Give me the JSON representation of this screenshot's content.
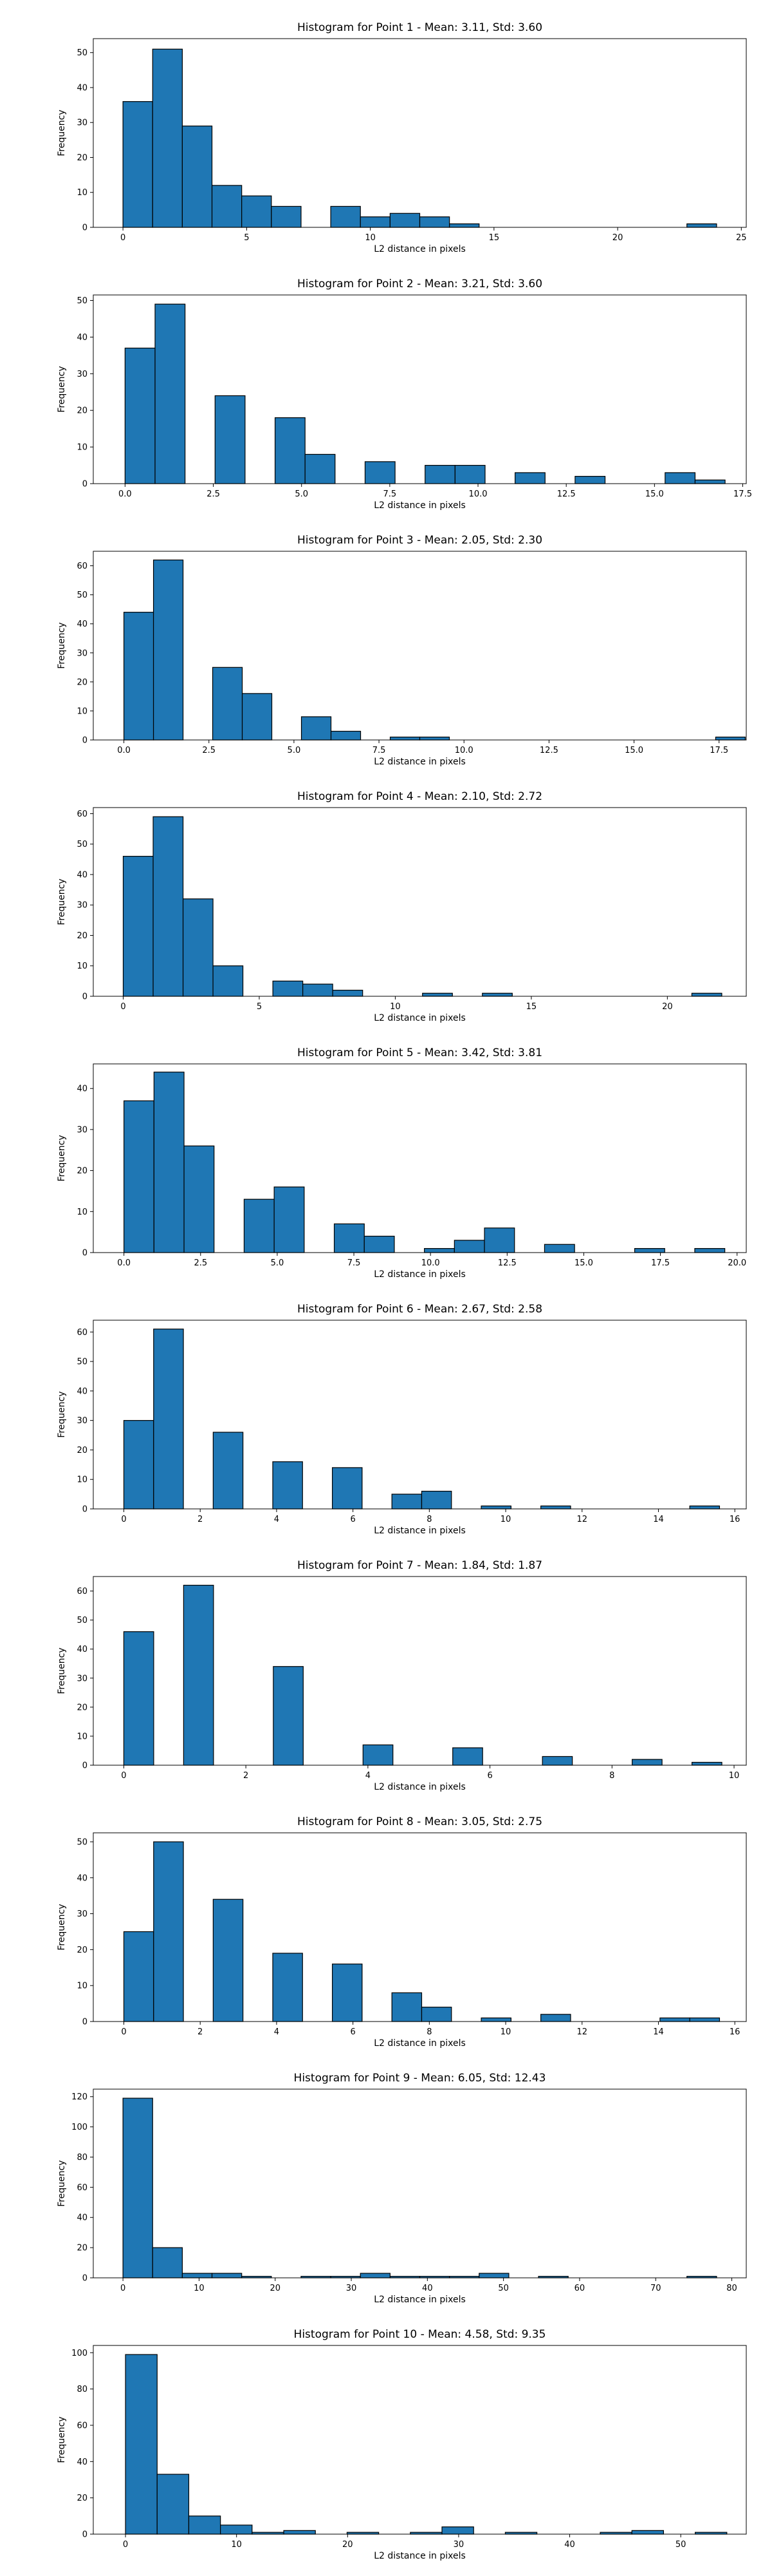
{
  "chart_data": [
    {
      "type": "bar",
      "title": "Histogram for Point 1 - Mean: 3.11, Std: 3.60",
      "xlabel": "L2 distance in pixels",
      "ylabel": "Frequency",
      "xlim": [
        -1.2,
        25.2
      ],
      "ylim": [
        0,
        54
      ],
      "xticks": [
        0,
        5,
        10,
        15,
        20,
        25
      ],
      "yticks": [
        0,
        10,
        20,
        30,
        40,
        50
      ],
      "bin_width": 1.2,
      "bins": [
        {
          "x": 0,
          "v": 36
        },
        {
          "x": 1.2,
          "v": 51
        },
        {
          "x": 2.4,
          "v": 29
        },
        {
          "x": 3.6,
          "v": 12
        },
        {
          "x": 4.8,
          "v": 9
        },
        {
          "x": 6.0,
          "v": 6
        },
        {
          "x": 8.4,
          "v": 6
        },
        {
          "x": 9.6,
          "v": 3
        },
        {
          "x": 10.8,
          "v": 4
        },
        {
          "x": 12.0,
          "v": 3
        },
        {
          "x": 13.2,
          "v": 1
        },
        {
          "x": 22.8,
          "v": 1
        }
      ]
    },
    {
      "type": "bar",
      "title": "Histogram for Point 2 - Mean: 3.21, Std: 3.60",
      "xlabel": "L2 distance in pixels",
      "ylabel": "Frequency",
      "xlim": [
        -0.9,
        17.6
      ],
      "ylim": [
        0,
        51.5
      ],
      "xticks": [
        0.0,
        2.5,
        5.0,
        7.5,
        10.0,
        12.5,
        15.0,
        17.5
      ],
      "ytickss": [],
      "yticks": [
        0,
        10,
        20,
        30,
        40,
        50
      ],
      "bin_width": 0.85,
      "bins": [
        {
          "x": 0,
          "v": 37
        },
        {
          "x": 0.85,
          "v": 49
        },
        {
          "x": 2.55,
          "v": 24
        },
        {
          "x": 4.25,
          "v": 18
        },
        {
          "x": 5.1,
          "v": 8
        },
        {
          "x": 6.8,
          "v": 6
        },
        {
          "x": 8.5,
          "v": 5
        },
        {
          "x": 9.35,
          "v": 5
        },
        {
          "x": 11.05,
          "v": 3
        },
        {
          "x": 12.75,
          "v": 2
        },
        {
          "x": 15.3,
          "v": 3
        },
        {
          "x": 16.15,
          "v": 1
        }
      ]
    },
    {
      "type": "bar",
      "title": "Histogram for Point 3 - Mean: 2.05, Std: 2.30",
      "xlabel": "L2 distance in pixels",
      "ylabel": "Frequency",
      "xlim": [
        -0.9,
        18.3
      ],
      "ylim": [
        0,
        65
      ],
      "xticks": [
        0.0,
        2.5,
        5.0,
        7.5,
        10.0,
        12.5,
        15.0,
        17.5
      ],
      "yticks": [
        0,
        10,
        20,
        30,
        40,
        50,
        60
      ],
      "bin_width": 0.87,
      "bins": [
        {
          "x": 0,
          "v": 44
        },
        {
          "x": 0.87,
          "v": 62
        },
        {
          "x": 2.61,
          "v": 25
        },
        {
          "x": 3.48,
          "v": 16
        },
        {
          "x": 5.22,
          "v": 8
        },
        {
          "x": 6.09,
          "v": 3
        },
        {
          "x": 7.83,
          "v": 1
        },
        {
          "x": 8.7,
          "v": 1
        },
        {
          "x": 17.4,
          "v": 1
        }
      ]
    },
    {
      "type": "bar",
      "title": "Histogram for Point 4 - Mean: 2.10, Std: 2.72",
      "xlabel": "L2 distance in pixels",
      "ylabel": "Frequency",
      "xlim": [
        -1.1,
        22.9
      ],
      "ylim": [
        0,
        62
      ],
      "xticks": [
        0,
        5,
        10,
        15,
        20
      ],
      "yticks": [
        0,
        10,
        20,
        30,
        40,
        50,
        60
      ],
      "bin_width": 1.1,
      "bins": [
        {
          "x": 0,
          "v": 46
        },
        {
          "x": 1.1,
          "v": 59
        },
        {
          "x": 2.2,
          "v": 32
        },
        {
          "x": 3.3,
          "v": 10
        },
        {
          "x": 5.5,
          "v": 5
        },
        {
          "x": 6.6,
          "v": 4
        },
        {
          "x": 7.7,
          "v": 2
        },
        {
          "x": 11.0,
          "v": 1
        },
        {
          "x": 13.2,
          "v": 1
        },
        {
          "x": 20.9,
          "v": 1
        }
      ]
    },
    {
      "type": "bar",
      "title": "Histogram for Point 5 - Mean: 3.42, Std: 3.81",
      "xlabel": "L2 distance in pixels",
      "ylabel": "Frequency",
      "xlim": [
        -1.0,
        20.3
      ],
      "ylim": [
        0,
        46
      ],
      "xticks": [
        0.0,
        2.5,
        5.0,
        7.5,
        10.0,
        12.5,
        15.0,
        17.5,
        20.0
      ],
      "yticks": [
        0,
        10,
        20,
        30,
        40
      ],
      "bin_width": 0.98,
      "bins": [
        {
          "x": 0,
          "v": 37
        },
        {
          "x": 0.98,
          "v": 44
        },
        {
          "x": 1.96,
          "v": 26
        },
        {
          "x": 3.92,
          "v": 13
        },
        {
          "x": 4.9,
          "v": 16
        },
        {
          "x": 6.86,
          "v": 7
        },
        {
          "x": 7.84,
          "v": 4
        },
        {
          "x": 9.8,
          "v": 1
        },
        {
          "x": 10.78,
          "v": 3
        },
        {
          "x": 11.76,
          "v": 6
        },
        {
          "x": 13.72,
          "v": 2
        },
        {
          "x": 16.66,
          "v": 1
        },
        {
          "x": 18.62,
          "v": 1
        }
      ]
    },
    {
      "type": "bar",
      "title": "Histogram for Point 6 - Mean: 2.67, Std: 2.58",
      "xlabel": "L2 distance in pixels",
      "ylabel": "Frequency",
      "xlim": [
        -0.8,
        16.3
      ],
      "ylim": [
        0,
        64
      ],
      "xticks": [
        0,
        2,
        4,
        6,
        8,
        10,
        12,
        14,
        16
      ],
      "yticks": [
        0,
        10,
        20,
        30,
        40,
        50,
        60
      ],
      "bin_width": 0.78,
      "bins": [
        {
          "x": 0,
          "v": 30
        },
        {
          "x": 0.78,
          "v": 61
        },
        {
          "x": 2.34,
          "v": 26
        },
        {
          "x": 3.9,
          "v": 16
        },
        {
          "x": 5.46,
          "v": 14
        },
        {
          "x": 7.02,
          "v": 5
        },
        {
          "x": 7.8,
          "v": 6
        },
        {
          "x": 9.36,
          "v": 1
        },
        {
          "x": 10.92,
          "v": 1
        },
        {
          "x": 14.82,
          "v": 1
        }
      ]
    },
    {
      "type": "bar",
      "title": "Histogram for Point 7 - Mean: 1.84, Std: 1.87",
      "xlabel": "L2 distance in pixels",
      "ylabel": "Frequency",
      "xlim": [
        -0.5,
        10.2
      ],
      "ylim": [
        0,
        65
      ],
      "xticks": [
        0,
        2,
        4,
        6,
        8,
        10
      ],
      "yticks": [
        0,
        10,
        20,
        30,
        40,
        50,
        60
      ],
      "bin_width": 0.49,
      "bins": [
        {
          "x": 0,
          "v": 46
        },
        {
          "x": 0.98,
          "v": 62
        },
        {
          "x": 2.45,
          "v": 34
        },
        {
          "x": 3.92,
          "v": 7
        },
        {
          "x": 5.39,
          "v": 6
        },
        {
          "x": 6.86,
          "v": 3
        },
        {
          "x": 8.33,
          "v": 2
        },
        {
          "x": 9.31,
          "v": 1
        }
      ]
    },
    {
      "type": "bar",
      "title": "Histogram for Point 8 - Mean: 3.05, Std: 2.75",
      "xlabel": "L2 distance in pixels",
      "ylabel": "Frequency",
      "xlim": [
        -0.8,
        16.3
      ],
      "ylim": [
        0,
        52.5
      ],
      "xticks": [
        0,
        2,
        4,
        6,
        8,
        10,
        12,
        14,
        16
      ],
      "yticks": [
        0,
        10,
        20,
        30,
        40,
        50
      ],
      "bin_width": 0.78,
      "bins": [
        {
          "x": 0,
          "v": 25
        },
        {
          "x": 0.78,
          "v": 50
        },
        {
          "x": 2.34,
          "v": 34
        },
        {
          "x": 3.9,
          "v": 19
        },
        {
          "x": 5.46,
          "v": 16
        },
        {
          "x": 7.02,
          "v": 8
        },
        {
          "x": 7.8,
          "v": 4
        },
        {
          "x": 9.36,
          "v": 1
        },
        {
          "x": 10.92,
          "v": 2
        },
        {
          "x": 14.04,
          "v": 1
        },
        {
          "x": 14.82,
          "v": 1
        }
      ]
    },
    {
      "type": "bar",
      "title": "Histogram for Point 9 - Mean: 6.05, Std: 12.43",
      "xlabel": "L2 distance in pixels",
      "ylabel": "Frequency",
      "xlim": [
        -3.9,
        81.9
      ],
      "ylim": [
        0,
        125
      ],
      "xticks": [
        0,
        10,
        20,
        30,
        40,
        50,
        60,
        70,
        80
      ],
      "yticks": [
        0,
        20,
        40,
        60,
        80,
        100,
        120
      ],
      "bin_width": 3.9,
      "bins": [
        {
          "x": 0,
          "v": 119
        },
        {
          "x": 3.9,
          "v": 20
        },
        {
          "x": 7.8,
          "v": 3
        },
        {
          "x": 11.7,
          "v": 3
        },
        {
          "x": 15.6,
          "v": 1
        },
        {
          "x": 23.4,
          "v": 1
        },
        {
          "x": 27.3,
          "v": 1
        },
        {
          "x": 31.2,
          "v": 3
        },
        {
          "x": 35.1,
          "v": 1
        },
        {
          "x": 39.0,
          "v": 1
        },
        {
          "x": 42.9,
          "v": 1
        },
        {
          "x": 46.8,
          "v": 3
        },
        {
          "x": 54.6,
          "v": 1
        },
        {
          "x": 74.1,
          "v": 1
        }
      ]
    },
    {
      "type": "bar",
      "title": "Histogram for Point 10 - Mean: 4.58, Std: 9.35",
      "xlabel": "L2 distance in pixels",
      "ylabel": "Frequency",
      "xlim": [
        -2.9,
        55.9
      ],
      "ylim": [
        0,
        104
      ],
      "xticks": [
        0,
        10,
        20,
        30,
        40,
        50
      ],
      "yticks": [
        0,
        20,
        40,
        60,
        80,
        100
      ],
      "bin_width": 2.85,
      "bins": [
        {
          "x": 0,
          "v": 99
        },
        {
          "x": 2.85,
          "v": 33
        },
        {
          "x": 5.7,
          "v": 10
        },
        {
          "x": 8.55,
          "v": 5
        },
        {
          "x": 11.4,
          "v": 1
        },
        {
          "x": 14.25,
          "v": 2
        },
        {
          "x": 19.95,
          "v": 1
        },
        {
          "x": 25.65,
          "v": 1
        },
        {
          "x": 28.5,
          "v": 4
        },
        {
          "x": 34.2,
          "v": 1
        },
        {
          "x": 42.75,
          "v": 1
        },
        {
          "x": 45.6,
          "v": 2
        },
        {
          "x": 51.3,
          "v": 1
        }
      ]
    }
  ],
  "style": {
    "bar_color": "#1f77b4",
    "edge_color": "#000000"
  }
}
